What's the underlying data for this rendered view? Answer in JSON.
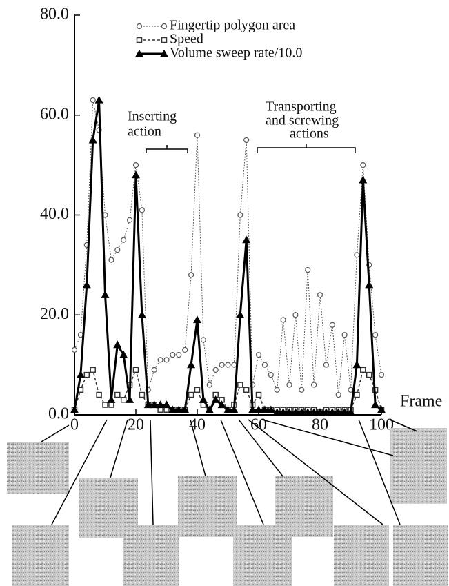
{
  "chart_data": {
    "type": "line",
    "x": [
      0,
      2,
      4,
      6,
      8,
      10,
      12,
      14,
      16,
      18,
      20,
      22,
      24,
      26,
      28,
      30,
      32,
      34,
      36,
      38,
      40,
      42,
      44,
      46,
      48,
      50,
      52,
      54,
      56,
      58,
      60,
      62,
      64,
      66,
      68,
      70,
      72,
      74,
      76,
      78,
      80,
      82,
      84,
      86,
      88,
      90,
      92,
      94,
      96,
      98,
      100
    ],
    "series": [
      {
        "name": "Fingertip polygon area",
        "color": "#555555",
        "marker": "circle",
        "dash": "2,2",
        "width": 1,
        "values": [
          13,
          16,
          34,
          63,
          57,
          40,
          31,
          33,
          35,
          39,
          50,
          41,
          5,
          9,
          11,
          11,
          12,
          12,
          13,
          28,
          56,
          15,
          6,
          9,
          10,
          10,
          10,
          40,
          55,
          6,
          12,
          10,
          8,
          5,
          19,
          6,
          20,
          5,
          29,
          6,
          24,
          10,
          18,
          4,
          16,
          5,
          32,
          50,
          30,
          16,
          8
        ]
      },
      {
        "name": "Speed",
        "color": "#333333",
        "marker": "square",
        "dash": "4,3",
        "width": 1.5,
        "values": [
          1,
          5,
          8,
          9,
          4,
          2,
          2,
          4,
          3,
          6,
          9,
          4,
          2,
          2,
          1,
          1,
          1,
          1,
          1,
          4,
          5,
          2,
          1,
          4,
          3,
          1,
          2,
          6,
          5,
          2,
          4,
          1,
          1,
          1,
          1,
          1,
          1,
          1,
          1,
          1,
          0.5,
          1,
          1,
          1,
          1,
          1,
          4,
          9,
          8,
          5,
          1
        ]
      },
      {
        "name": "Volume sweep rate/10.0",
        "color": "#000000",
        "marker": "triangle",
        "dash": "",
        "width": 3,
        "values": [
          1,
          8,
          26,
          55,
          63,
          24,
          3,
          14,
          12,
          3,
          48,
          20,
          2,
          2,
          2,
          2,
          1,
          1,
          1,
          10,
          19,
          3,
          1,
          3,
          2,
          1,
          1,
          20,
          35,
          1,
          1,
          1,
          1,
          0.5,
          0.5,
          0.5,
          0.5,
          0.5,
          0.5,
          0.5,
          0.5,
          0.5,
          0.5,
          0.5,
          0.5,
          0.5,
          10,
          47,
          26,
          2,
          1
        ]
      }
    ],
    "xlabel": "Frame",
    "xlim": [
      0,
      100
    ],
    "xticks": [
      0,
      20,
      40,
      60,
      80,
      100
    ],
    "ylim": [
      0,
      80
    ],
    "yticks": [
      {
        "value": 0,
        "label": "0.0"
      },
      {
        "value": 20,
        "label": "20.0"
      },
      {
        "value": 40,
        "label": "40.0"
      },
      {
        "value": 60,
        "label": "60.0"
      },
      {
        "value": 80,
        "label": "80.0"
      }
    ],
    "annotations": [
      "Inserting",
      "action",
      "Transporting",
      "and screwing",
      "actions"
    ]
  }
}
